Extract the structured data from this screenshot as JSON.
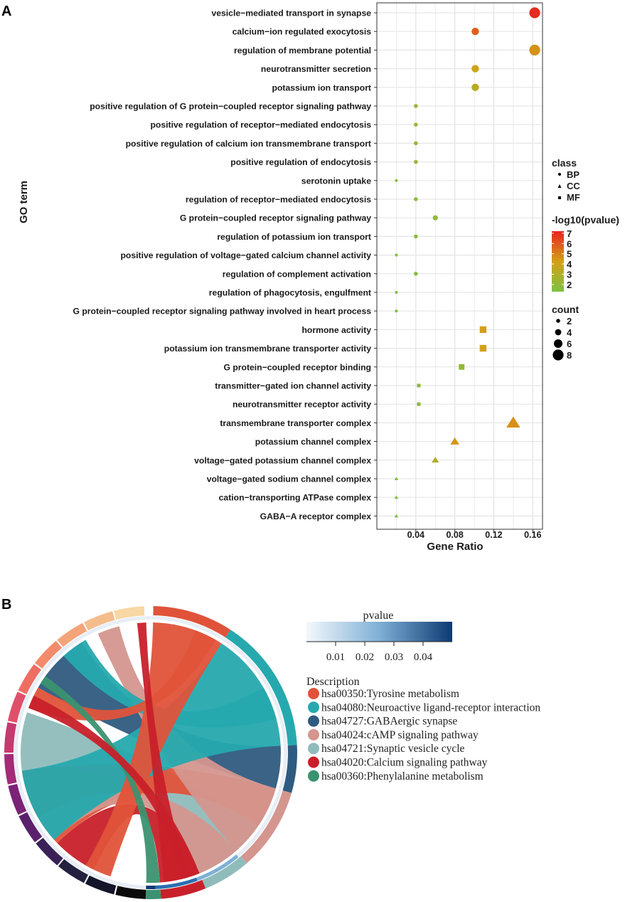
{
  "panels": {
    "a_letter": "A",
    "b_letter": "B"
  },
  "chart_data": [
    {
      "type": "scatter",
      "title": "",
      "xlabel": "Gene Ratio",
      "ylabel": "GO term",
      "xlim": [
        0.0,
        0.17
      ],
      "xticks": [
        0.04,
        0.08,
        0.12,
        0.16
      ],
      "xtick_labels": [
        "0.04",
        "0.08",
        "0.12",
        "0.16"
      ],
      "grid": true,
      "color_scale": {
        "title": "-log10(pvalue)",
        "min": 1.3,
        "max": 7.2,
        "ticks": [
          7,
          6,
          5,
          4,
          3,
          2
        ],
        "low_color": "#7cc142",
        "mid_color": "#d4a017",
        "high_color": "#e8231f"
      },
      "shape_legend": {
        "title": "class",
        "entries": [
          "BP",
          "CC",
          "MF"
        ]
      },
      "size_legend": {
        "title": "count",
        "entries": [
          2,
          4,
          6,
          8
        ]
      },
      "terms": [
        {
          "term": "vesicle−mediated transport in synapse",
          "class": "BP",
          "ratio": 0.162,
          "neglogp": 7.0,
          "count": 8
        },
        {
          "term": "calcium−ion regulated exocytosis",
          "class": "BP",
          "ratio": 0.101,
          "neglogp": 5.8,
          "count": 5
        },
        {
          "term": "regulation of membrane potential",
          "class": "BP",
          "ratio": 0.162,
          "neglogp": 4.6,
          "count": 8
        },
        {
          "term": "neurotransmitter secretion",
          "class": "BP",
          "ratio": 0.101,
          "neglogp": 3.9,
          "count": 5
        },
        {
          "term": "potassium ion transport",
          "class": "BP",
          "ratio": 0.101,
          "neglogp": 3.3,
          "count": 5
        },
        {
          "term": "positive regulation of G protein−coupled receptor signaling pathway",
          "class": "BP",
          "ratio": 0.04,
          "neglogp": 2.3,
          "count": 2
        },
        {
          "term": "positive regulation of receptor−mediated endocytosis",
          "class": "BP",
          "ratio": 0.04,
          "neglogp": 2.3,
          "count": 2
        },
        {
          "term": "positive regulation of calcium ion transmembrane transport",
          "class": "BP",
          "ratio": 0.04,
          "neglogp": 2.2,
          "count": 2
        },
        {
          "term": "positive regulation of endocytosis",
          "class": "BP",
          "ratio": 0.04,
          "neglogp": 2.1,
          "count": 2
        },
        {
          "term": "serotonin uptake",
          "class": "BP",
          "ratio": 0.02,
          "neglogp": 2.0,
          "count": 1
        },
        {
          "term": "regulation of receptor−mediated endocytosis",
          "class": "BP",
          "ratio": 0.04,
          "neglogp": 1.9,
          "count": 2
        },
        {
          "term": "G protein−coupled receptor signaling pathway",
          "class": "BP",
          "ratio": 0.06,
          "neglogp": 1.9,
          "count": 3
        },
        {
          "term": "regulation of potassium ion transport",
          "class": "BP",
          "ratio": 0.04,
          "neglogp": 1.8,
          "count": 2
        },
        {
          "term": "positive regulation of voltage−gated calcium channel activity",
          "class": "BP",
          "ratio": 0.02,
          "neglogp": 1.8,
          "count": 1
        },
        {
          "term": "regulation of complement activation",
          "class": "BP",
          "ratio": 0.04,
          "neglogp": 1.7,
          "count": 2
        },
        {
          "term": "regulation of phagocytosis, engulfment",
          "class": "BP",
          "ratio": 0.02,
          "neglogp": 1.7,
          "count": 1
        },
        {
          "term": "G protein−coupled receptor signaling pathway involved in heart process",
          "class": "BP",
          "ratio": 0.02,
          "neglogp": 1.6,
          "count": 1
        },
        {
          "term": "hormone activity",
          "class": "MF",
          "ratio": 0.109,
          "neglogp": 4.3,
          "count": 5
        },
        {
          "term": "potassium ion transmembrane transporter activity",
          "class": "MF",
          "ratio": 0.109,
          "neglogp": 4.2,
          "count": 5
        },
        {
          "term": "G protein−coupled receptor binding",
          "class": "MF",
          "ratio": 0.087,
          "neglogp": 2.1,
          "count": 4
        },
        {
          "term": "transmitter−gated ion channel activity",
          "class": "MF",
          "ratio": 0.043,
          "neglogp": 1.8,
          "count": 2
        },
        {
          "term": "neurotransmitter receptor activity",
          "class": "MF",
          "ratio": 0.043,
          "neglogp": 1.8,
          "count": 2
        },
        {
          "term": "transmembrane transporter complex",
          "class": "CC",
          "ratio": 0.14,
          "neglogp": 4.6,
          "count": 7
        },
        {
          "term": "potassium channel complex",
          "class": "CC",
          "ratio": 0.08,
          "neglogp": 4.5,
          "count": 4
        },
        {
          "term": "voltage−gated potassium channel complex",
          "class": "CC",
          "ratio": 0.06,
          "neglogp": 3.0,
          "count": 3
        },
        {
          "term": "voltage−gated sodium channel complex",
          "class": "CC",
          "ratio": 0.02,
          "neglogp": 1.9,
          "count": 1
        },
        {
          "term": "cation−transporting ATPase complex",
          "class": "CC",
          "ratio": 0.02,
          "neglogp": 1.8,
          "count": 1
        },
        {
          "term": "GABA−A receptor complex",
          "class": "CC",
          "ratio": 0.02,
          "neglogp": 1.7,
          "count": 1
        }
      ]
    },
    {
      "type": "chord",
      "pvalue_scale": {
        "title": "pvalue",
        "ticks": [
          "0.01",
          "0.02",
          "0.03",
          "0.04"
        ],
        "tick_values": [
          0.01,
          0.02,
          0.03,
          0.04
        ],
        "min": 0.0,
        "max": 0.05,
        "low_color": "#f4f8fc",
        "high_color": "#0d3a73"
      },
      "legend_title": "Description",
      "pathways": [
        {
          "label": "hsa00350:Tyrosine metabolism",
          "color": "#e0533a",
          "genes": 4
        },
        {
          "label": "hsa04080:Neuroactive ligand-receptor interaction",
          "color": "#26a9ae",
          "genes": 9
        },
        {
          "label": "hsa04727:GABAergic synapse",
          "color": "#2f5b80",
          "genes": 3
        },
        {
          "label": "hsa04024:cAMP signaling pathway",
          "color": "#d4968e",
          "genes": 5
        },
        {
          "label": "hsa04721:Synaptic vesicle cycle",
          "color": "#8fbcbb",
          "genes": 4
        },
        {
          "label": "hsa04020:Calcium signaling pathway",
          "color": "#c8202a",
          "genes": 5
        },
        {
          "label": "hsa00360:Phenylalanine metabolism",
          "color": "#3b9270",
          "genes": 1
        }
      ]
    }
  ]
}
